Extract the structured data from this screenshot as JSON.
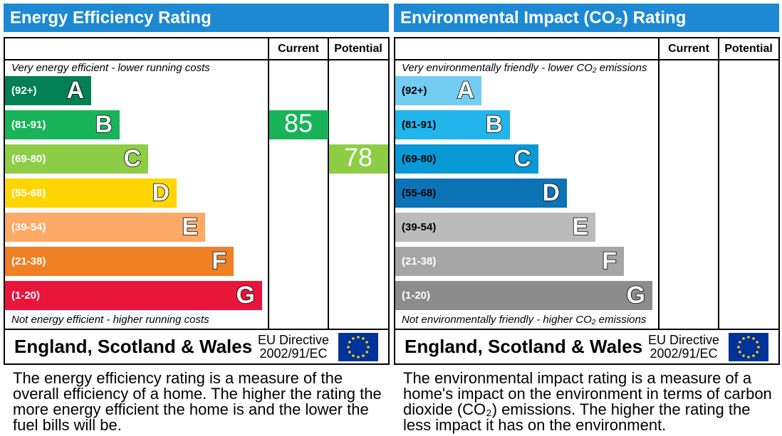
{
  "panels": [
    {
      "title": "Energy Efficiency Rating",
      "headers": [
        "Current",
        "Potential"
      ],
      "top_note": "Very energy efficient - lower running costs",
      "bands": [
        {
          "range": "(92+)",
          "letter": "A",
          "color": "#008054",
          "text_color": "#ffffff"
        },
        {
          "range": "(81-91)",
          "letter": "B",
          "color": "#19b459",
          "text_color": "#ffffff"
        },
        {
          "range": "(69-80)",
          "letter": "C",
          "color": "#8dce46",
          "text_color": "#ffffff"
        },
        {
          "range": "(55-68)",
          "letter": "D",
          "color": "#ffd500",
          "text_color": "#ffffff"
        },
        {
          "range": "(39-54)",
          "letter": "E",
          "color": "#fcaa65",
          "text_color": "#ffffff"
        },
        {
          "range": "(21-38)",
          "letter": "F",
          "color": "#ef8023",
          "text_color": "#ffffff"
        },
        {
          "range": "(1-20)",
          "letter": "G",
          "color": "#e9153b",
          "text_color": "#ffffff"
        }
      ],
      "bottom_note": "Not energy efficient - higher running costs",
      "current": 85,
      "potential": 78,
      "footer": {
        "region": "England, Scotland & Wales",
        "directive": "EU Directive",
        "directive_code": "2002/91/EC"
      },
      "description": "The energy efficiency rating is a measure of the overall efficiency of a home. The higher the rating the more energy efficient the home is and the lower the fuel bills will be."
    },
    {
      "title": "Environmental Impact (CO₂) Rating",
      "headers": [
        "Current",
        "Potential"
      ],
      "top_note": "Very environmentally friendly - lower CO₂ emissions",
      "bands": [
        {
          "range": "(92+)",
          "letter": "A",
          "color": "#73cdf2",
          "text_color": "#000000"
        },
        {
          "range": "(81-91)",
          "letter": "B",
          "color": "#22b5ec",
          "text_color": "#000000"
        },
        {
          "range": "(69-80)",
          "letter": "C",
          "color": "#0699d5",
          "text_color": "#000000"
        },
        {
          "range": "(55-68)",
          "letter": "D",
          "color": "#0c73b7",
          "text_color": "#000000"
        },
        {
          "range": "(39-54)",
          "letter": "E",
          "color": "#bbbbbb",
          "text_color": "#000000"
        },
        {
          "range": "(21-38)",
          "letter": "F",
          "color": "#a5a5a5",
          "text_color": "#ffffff"
        },
        {
          "range": "(1-20)",
          "letter": "G",
          "color": "#8c8c8c",
          "text_color": "#ffffff"
        }
      ],
      "bottom_note": "Not environmentally friendly - higher CO₂ emissions",
      "footer": {
        "region": "England, Scotland & Wales",
        "directive": "EU Directive",
        "directive_code": "2002/91/EC"
      },
      "description": "The environmental impact rating is a measure of a home's impact on the environment in terms of carbon dioxide (CO₂) emissions. The higher the rating the less impact it has on the environment."
    }
  ]
}
